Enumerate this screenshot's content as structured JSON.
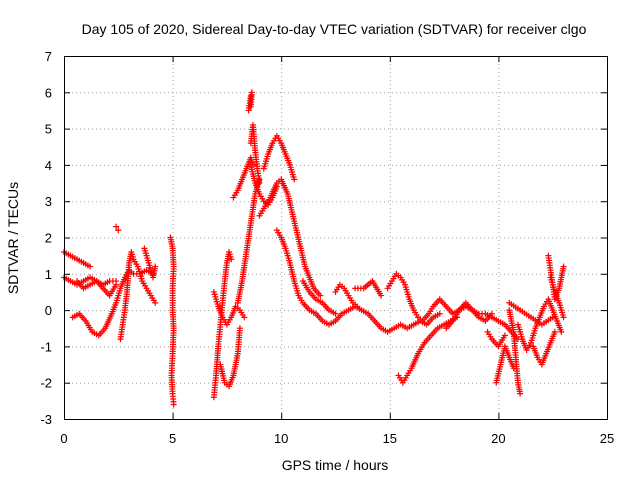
{
  "chart_data": {
    "type": "scatter",
    "title": "Day 105 of 2020, Sidereal Day-to-day VTEC variation (SDTVAR) for receiver clgo",
    "xlabel": "GPS time / hours",
    "ylabel": "SDTVAR / TECUs",
    "xlim": [
      0,
      25
    ],
    "ylim": [
      -3,
      7
    ],
    "xticks": [
      "0",
      "5",
      "10",
      "15",
      "20",
      "25"
    ],
    "yticks": [
      "-3",
      "-2",
      "-1",
      "0",
      "1",
      "2",
      "3",
      "4",
      "5",
      "6",
      "7"
    ],
    "grid": true,
    "marker": "+",
    "color": "#ff0000",
    "series": [
      {
        "name": "clgo",
        "segments": [
          [
            [
              0.0,
              1.6
            ],
            [
              0.3,
              1.5
            ],
            [
              0.6,
              1.4
            ],
            [
              0.9,
              1.3
            ],
            [
              1.2,
              1.2
            ]
          ],
          [
            [
              0.0,
              0.9
            ],
            [
              0.3,
              0.8
            ],
            [
              0.6,
              0.7
            ],
            [
              0.9,
              0.8
            ],
            [
              1.2,
              0.9
            ],
            [
              1.5,
              0.8
            ],
            [
              1.8,
              0.7
            ],
            [
              2.1,
              0.8
            ],
            [
              2.4,
              0.8
            ]
          ],
          [
            [
              0.4,
              -0.2
            ],
            [
              0.7,
              -0.1
            ],
            [
              1.0,
              -0.3
            ],
            [
              1.3,
              -0.6
            ],
            [
              1.6,
              -0.7
            ],
            [
              1.9,
              -0.5
            ],
            [
              2.2,
              -0.1
            ],
            [
              2.4,
              0.2
            ],
            [
              2.6,
              0.6
            ],
            [
              2.8,
              0.9
            ],
            [
              3.0,
              1.1
            ],
            [
              3.2,
              1.0
            ],
            [
              3.5,
              1.0
            ],
            [
              3.8,
              1.1
            ],
            [
              4.1,
              1.0
            ]
          ],
          [
            [
              0.6,
              0.8
            ],
            [
              0.9,
              0.6
            ],
            [
              1.2,
              0.7
            ],
            [
              1.5,
              0.8
            ],
            [
              1.8,
              0.6
            ],
            [
              2.1,
              0.4
            ],
            [
              2.4,
              0.7
            ]
          ],
          [
            [
              2.4,
              2.3
            ],
            [
              2.5,
              2.2
            ]
          ],
          [
            [
              2.6,
              -0.8
            ],
            [
              2.7,
              -0.4
            ],
            [
              2.8,
              0.0
            ],
            [
              2.9,
              0.5
            ],
            [
              3.0,
              1.3
            ],
            [
              3.1,
              1.6
            ],
            [
              3.2,
              1.4
            ],
            [
              3.4,
              1.2
            ],
            [
              3.6,
              0.8
            ],
            [
              3.8,
              0.6
            ],
            [
              4.0,
              0.4
            ],
            [
              4.2,
              0.2
            ]
          ],
          [
            [
              3.7,
              1.7
            ],
            [
              3.9,
              1.3
            ],
            [
              4.1,
              0.9
            ],
            [
              4.2,
              1.2
            ]
          ],
          [
            [
              4.9,
              2.0
            ],
            [
              5.0,
              1.7
            ],
            [
              5.05,
              1.2
            ],
            [
              5.0,
              0.6
            ],
            [
              5.0,
              0.0
            ],
            [
              5.05,
              -0.5
            ],
            [
              5.0,
              -1.2
            ],
            [
              4.95,
              -1.8
            ],
            [
              5.0,
              -2.3
            ],
            [
              5.05,
              -2.6
            ]
          ],
          [
            [
              6.9,
              -2.4
            ],
            [
              7.0,
              -1.8
            ],
            [
              7.1,
              -1.0
            ],
            [
              7.2,
              -0.4
            ],
            [
              7.3,
              0.2
            ],
            [
              7.4,
              0.8
            ],
            [
              7.5,
              1.3
            ],
            [
              7.6,
              1.6
            ],
            [
              7.7,
              1.4
            ]
          ],
          [
            [
              6.9,
              0.5
            ],
            [
              7.1,
              0.1
            ],
            [
              7.3,
              -0.2
            ],
            [
              7.5,
              -0.4
            ],
            [
              7.7,
              -0.2
            ],
            [
              7.9,
              0.1
            ],
            [
              8.1,
              0.0
            ],
            [
              8.3,
              -0.2
            ]
          ],
          [
            [
              7.2,
              -1.5
            ],
            [
              7.4,
              -2.0
            ],
            [
              7.6,
              -2.1
            ],
            [
              7.8,
              -1.8
            ],
            [
              8.0,
              -1.2
            ],
            [
              8.1,
              -0.5
            ]
          ],
          [
            [
              7.8,
              3.1
            ],
            [
              8.0,
              3.3
            ],
            [
              8.2,
              3.6
            ],
            [
              8.4,
              3.9
            ],
            [
              8.6,
              4.2
            ],
            [
              8.7,
              4.0
            ]
          ],
          [
            [
              8.0,
              0.2
            ],
            [
              8.2,
              0.8
            ],
            [
              8.4,
              1.6
            ],
            [
              8.6,
              2.4
            ],
            [
              8.8,
              3.2
            ],
            [
              9.0,
              3.6
            ]
          ],
          [
            [
              8.6,
              4.6
            ],
            [
              8.7,
              5.1
            ],
            [
              8.8,
              4.4
            ],
            [
              8.9,
              3.9
            ],
            [
              9.0,
              3.5
            ]
          ],
          [
            [
              8.6,
              4.0
            ],
            [
              8.8,
              3.5
            ],
            [
              9.0,
              3.2
            ],
            [
              9.2,
              3.0
            ],
            [
              9.4,
              2.9
            ],
            [
              9.6,
              3.1
            ],
            [
              9.8,
              3.4
            ]
          ],
          [
            [
              9.2,
              3.9
            ],
            [
              9.4,
              4.3
            ],
            [
              9.6,
              4.6
            ],
            [
              9.8,
              4.8
            ],
            [
              10.0,
              4.6
            ],
            [
              10.2,
              4.3
            ],
            [
              10.4,
              4.0
            ],
            [
              10.6,
              3.6
            ]
          ],
          [
            [
              9.0,
              2.6
            ],
            [
              9.2,
              2.8
            ],
            [
              9.5,
              3.1
            ],
            [
              9.8,
              3.5
            ],
            [
              10.0,
              3.6
            ],
            [
              10.3,
              3.2
            ],
            [
              10.5,
              2.7
            ],
            [
              10.7,
              2.2
            ],
            [
              10.9,
              1.7
            ],
            [
              11.1,
              1.2
            ],
            [
              11.3,
              0.9
            ],
            [
              11.5,
              0.6
            ],
            [
              11.8,
              0.4
            ]
          ],
          [
            [
              9.8,
              2.2
            ],
            [
              10.0,
              2.0
            ],
            [
              10.2,
              1.7
            ],
            [
              10.4,
              1.3
            ],
            [
              10.6,
              0.8
            ],
            [
              10.8,
              0.4
            ],
            [
              11.0,
              0.2
            ],
            [
              11.3,
              0.0
            ],
            [
              11.6,
              -0.1
            ],
            [
              11.9,
              -0.3
            ],
            [
              12.2,
              -0.4
            ],
            [
              12.5,
              -0.3
            ],
            [
              12.8,
              -0.1
            ],
            [
              13.1,
              0.0
            ],
            [
              13.4,
              0.1
            ],
            [
              13.7,
              0.0
            ],
            [
              14.0,
              -0.1
            ],
            [
              14.3,
              -0.3
            ],
            [
              14.6,
              -0.5
            ],
            [
              14.9,
              -0.6
            ],
            [
              15.2,
              -0.5
            ],
            [
              15.5,
              -0.4
            ],
            [
              15.8,
              -0.5
            ],
            [
              16.1,
              -0.4
            ],
            [
              16.4,
              -0.3
            ],
            [
              16.7,
              -0.4
            ],
            [
              17.0,
              -0.2
            ],
            [
              17.3,
              -0.1
            ]
          ],
          [
            [
              11.0,
              0.8
            ],
            [
              11.3,
              0.5
            ],
            [
              11.6,
              0.3
            ],
            [
              11.9,
              0.2
            ],
            [
              12.2,
              0.0
            ],
            [
              12.5,
              -0.1
            ]
          ],
          [
            [
              12.5,
              0.5
            ],
            [
              12.7,
              0.7
            ],
            [
              12.9,
              0.6
            ],
            [
              13.1,
              0.4
            ],
            [
              13.3,
              0.2
            ],
            [
              13.5,
              0.1
            ]
          ],
          [
            [
              13.4,
              0.6
            ],
            [
              13.8,
              0.6
            ],
            [
              14.2,
              0.8
            ],
            [
              14.6,
              0.4
            ]
          ],
          [
            [
              14.9,
              0.6
            ],
            [
              15.1,
              0.8
            ],
            [
              15.3,
              1.0
            ],
            [
              15.5,
              0.9
            ],
            [
              15.7,
              0.7
            ],
            [
              15.9,
              0.3
            ],
            [
              16.1,
              0.0
            ],
            [
              16.3,
              -0.2
            ],
            [
              16.5,
              -0.3
            ],
            [
              16.8,
              -0.1
            ],
            [
              17.0,
              0.1
            ],
            [
              17.3,
              0.3
            ],
            [
              17.6,
              0.1
            ],
            [
              17.9,
              -0.1
            ],
            [
              18.2,
              0.0
            ],
            [
              18.5,
              0.1
            ],
            [
              18.8,
              0.0
            ],
            [
              19.1,
              -0.2
            ],
            [
              19.4,
              -0.3
            ],
            [
              19.7,
              -0.1
            ]
          ],
          [
            [
              15.4,
              -1.8
            ],
            [
              15.6,
              -2.0
            ],
            [
              15.8,
              -1.8
            ],
            [
              16.0,
              -1.6
            ],
            [
              16.3,
              -1.2
            ],
            [
              16.6,
              -0.9
            ],
            [
              16.9,
              -0.7
            ],
            [
              17.2,
              -0.5
            ],
            [
              17.5,
              -0.4
            ],
            [
              17.8,
              -0.3
            ],
            [
              18.1,
              -0.2
            ]
          ],
          [
            [
              17.6,
              -0.5
            ],
            [
              17.9,
              -0.3
            ],
            [
              18.2,
              0.0
            ],
            [
              18.5,
              0.2
            ],
            [
              18.8,
              0.0
            ],
            [
              19.1,
              -0.1
            ],
            [
              19.4,
              -0.1
            ],
            [
              19.7,
              -0.2
            ],
            [
              20.0,
              -0.3
            ],
            [
              20.3,
              -0.4
            ],
            [
              20.6,
              -0.6
            ],
            [
              20.9,
              -0.8
            ]
          ],
          [
            [
              19.5,
              -0.6
            ],
            [
              19.7,
              -0.8
            ],
            [
              20.0,
              -1.0
            ],
            [
              20.3,
              -0.7
            ]
          ],
          [
            [
              19.9,
              -2.0
            ],
            [
              20.1,
              -1.5
            ],
            [
              20.3,
              -1.0
            ],
            [
              20.5,
              -1.3
            ],
            [
              20.7,
              -1.6
            ]
          ],
          [
            [
              20.5,
              0.0
            ],
            [
              20.7,
              -0.6
            ],
            [
              20.8,
              -1.3
            ],
            [
              20.9,
              -2.0
            ],
            [
              21.0,
              -2.3
            ]
          ],
          [
            [
              20.9,
              -0.4
            ],
            [
              21.1,
              -0.8
            ],
            [
              21.3,
              -1.1
            ],
            [
              21.5,
              -0.9
            ],
            [
              21.7,
              -0.5
            ],
            [
              21.9,
              -0.2
            ],
            [
              22.1,
              0.1
            ],
            [
              22.3,
              0.3
            ],
            [
              22.5,
              0.0
            ],
            [
              22.7,
              -0.3
            ],
            [
              22.9,
              -0.6
            ]
          ],
          [
            [
              21.6,
              -1.0
            ],
            [
              21.8,
              -1.3
            ],
            [
              22.0,
              -1.5
            ],
            [
              22.2,
              -1.2
            ],
            [
              22.4,
              -0.9
            ],
            [
              22.6,
              -0.6
            ]
          ],
          [
            [
              22.3,
              1.5
            ],
            [
              22.4,
              1.1
            ],
            [
              22.5,
              0.7
            ],
            [
              22.6,
              0.3
            ],
            [
              22.8,
              0.6
            ],
            [
              22.9,
              0.9
            ],
            [
              23.0,
              1.2
            ]
          ],
          [
            [
              22.4,
              0.9
            ],
            [
              22.6,
              0.5
            ],
            [
              22.8,
              0.2
            ],
            [
              22.9,
              0.0
            ],
            [
              23.0,
              -0.2
            ]
          ],
          [
            [
              20.5,
              0.2
            ],
            [
              21.0,
              0.0
            ],
            [
              21.5,
              -0.2
            ],
            [
              22.0,
              -0.4
            ],
            [
              22.5,
              -0.2
            ]
          ],
          [
            [
              8.5,
              5.5
            ],
            [
              8.6,
              5.9
            ],
            [
              8.65,
              6.0
            ],
            [
              8.6,
              5.6
            ]
          ]
        ]
      }
    ]
  }
}
